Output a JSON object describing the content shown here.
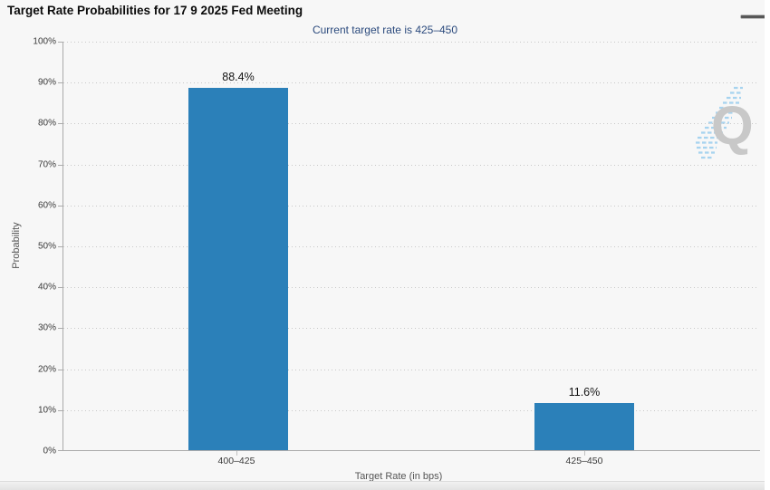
{
  "header": {
    "title": "Target Rate Probabilities for 17 9 2025 Fed Meeting",
    "menu_icon": "hamburger-menu"
  },
  "chart_data": {
    "type": "bar",
    "title": "Target Rate Probabilities for 17 9 2025 Fed Meeting",
    "subtitle": "Current target rate is 425–450",
    "categories": [
      "400–425",
      "425–450"
    ],
    "values": [
      88.4,
      11.6
    ],
    "value_labels": [
      "88.4%",
      "11.6%"
    ],
    "xlabel": "Target Rate (in bps)",
    "ylabel": "Probability",
    "ylim": [
      0,
      100
    ],
    "ytick_interval": 10,
    "ytick_labels_top_to_bottom": [
      "100%",
      "90%",
      "80%",
      "70%",
      "60%",
      "50%",
      "40%",
      "30%",
      "20%",
      "10%",
      "0%"
    ],
    "grid": "horizontal dotted",
    "legend": "none",
    "bar_color": "#2b80b9",
    "subtitle_color": "#2b4a7d",
    "watermark_letter": "Q"
  }
}
